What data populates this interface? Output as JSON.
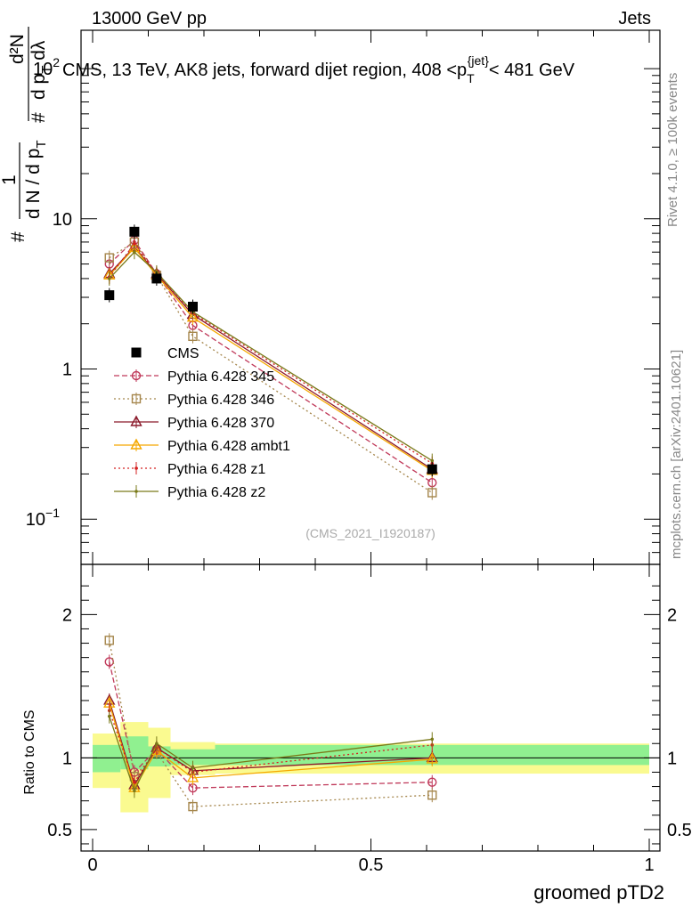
{
  "header": {
    "energy_label": "13000 GeV pp",
    "category_label": "Jets",
    "title": "CMS, 13 TeV, AK8 jets, forward dijet region, 408 <p",
    "title_sup": "{jet}",
    "title_sub": "T",
    "title_end": "< 481 GeV",
    "analysis_id": "(CMS_2021_I1920187)",
    "side_label_top": "Rivet 4.1.0, ≥ 100k events",
    "side_label_bottom": "mcplots.cern.ch [arXiv:2401.10621]"
  },
  "colors": {
    "CMS": "#000000",
    "p345": "#c0395a",
    "p346": "#a5864c",
    "p370": "#8b1a2b",
    "ambt1": "#f5a800",
    "z1": "#d42020",
    "z2": "#7a7a1a",
    "band_inner": "#90f090",
    "band_outer": "#fafa90"
  },
  "chart_data": [
    {
      "type": "line",
      "panel": "main",
      "yscale": "log",
      "ylabel": {
        "numerator": "1",
        "denominator": "d N / d p",
        "denominator_sub": "T",
        "hash1": "#",
        "hash2": "#",
        "d2N": "d²N",
        "dpTdl": "d p",
        "dpTdl_sub": "T",
        "dpTdl_end": " dλ"
      },
      "xlim": [
        -0.02,
        1.0
      ],
      "ylim": [
        0.05,
        180
      ],
      "y_tick_labels": [
        {
          "value": 0.1,
          "base": "10",
          "exp": "−1"
        },
        {
          "value": 1,
          "base": "1",
          "exp": ""
        },
        {
          "value": 10,
          "base": "10",
          "exp": ""
        },
        {
          "value": 100,
          "base": "10",
          "exp": "2"
        }
      ],
      "x": [
        0.03,
        0.075,
        0.115,
        0.18,
        0.61
      ],
      "series": [
        {
          "name": "CMS",
          "key": "CMS",
          "marker": "filled-square",
          "values": [
            3.1,
            8.2,
            4.0,
            2.6,
            0.215
          ]
        },
        {
          "name": "Pythia 6.428 345",
          "key": "p345",
          "marker": "circle",
          "dash": "dash",
          "values": [
            5.0,
            7.2,
            4.3,
            1.95,
            0.175
          ]
        },
        {
          "name": "Pythia 6.428 346",
          "key": "p346",
          "marker": "square",
          "dash": "dot",
          "values": [
            5.5,
            7.0,
            4.2,
            1.65,
            0.15
          ]
        },
        {
          "name": "Pythia 6.428 370",
          "key": "p370",
          "marker": "triangle",
          "dash": "solid",
          "values": [
            4.3,
            6.5,
            4.3,
            2.3,
            0.215
          ]
        },
        {
          "name": "Pythia 6.428 ambt1",
          "key": "ambt1",
          "marker": "triangle",
          "dash": "solid",
          "values": [
            4.2,
            6.4,
            4.2,
            2.2,
            0.21
          ]
        },
        {
          "name": "Pythia 6.428 z1",
          "key": "z1",
          "marker": "dot",
          "dash": "dot",
          "values": [
            4.1,
            6.8,
            4.3,
            2.35,
            0.235
          ]
        },
        {
          "name": "Pythia 6.428 z2",
          "key": "z2",
          "marker": "dot",
          "dash": "solid",
          "values": [
            4.0,
            6.0,
            4.4,
            2.4,
            0.245
          ]
        }
      ]
    },
    {
      "type": "line",
      "panel": "ratio",
      "yscale": "linear",
      "ylabel": "Ratio to CMS",
      "xlabel": "groomed pTD2",
      "xlim": [
        -0.02,
        1.0
      ],
      "ylim": [
        0.35,
        2.35
      ],
      "y_tick_labels": [
        "0.5",
        "1",
        "2"
      ],
      "y_tick_values": [
        0.5,
        1,
        2
      ],
      "x_tick_labels": [
        "0",
        "0.5",
        "1"
      ],
      "x_tick_values": [
        0,
        0.5,
        1
      ],
      "bin_edges": [
        0,
        0.05,
        0.1,
        0.14,
        0.22,
        1.0
      ],
      "bands": {
        "inner": [
          [
            0.9,
            1.09
          ],
          [
            0.92,
            1.15
          ],
          [
            0.94,
            1.08
          ],
          [
            0.95,
            1.06
          ],
          [
            0.95,
            1.09
          ]
        ],
        "outer": [
          [
            0.79,
            1.17
          ],
          [
            0.62,
            1.25
          ],
          [
            0.72,
            1.21
          ],
          [
            0.88,
            1.11
          ],
          [
            0.89,
            1.1
          ]
        ]
      },
      "x": [
        0.03,
        0.075,
        0.115,
        0.18,
        0.61
      ],
      "series": [
        {
          "name": "Pythia 6.428 345",
          "key": "p345",
          "marker": "circle",
          "dash": "dash",
          "values": [
            1.67,
            0.9,
            1.06,
            0.79,
            0.83
          ]
        },
        {
          "name": "Pythia 6.428 346",
          "key": "p346",
          "marker": "square",
          "dash": "dot",
          "values": [
            1.82,
            0.87,
            1.04,
            0.66,
            0.74
          ]
        },
        {
          "name": "Pythia 6.428 370",
          "key": "p370",
          "marker": "triangle",
          "dash": "solid",
          "values": [
            1.4,
            0.81,
            1.07,
            0.91,
            1.0
          ]
        },
        {
          "name": "Pythia 6.428 ambt1",
          "key": "ambt1",
          "marker": "triangle",
          "dash": "solid",
          "values": [
            1.38,
            0.79,
            1.05,
            0.86,
            0.99
          ]
        },
        {
          "name": "Pythia 6.428 z1",
          "key": "z1",
          "marker": "dot",
          "dash": "dot",
          "values": [
            1.33,
            0.83,
            1.07,
            0.9,
            1.09
          ]
        },
        {
          "name": "Pythia 6.428 z2",
          "key": "z2",
          "marker": "dot",
          "dash": "solid",
          "values": [
            1.29,
            0.77,
            1.1,
            0.93,
            1.13
          ]
        }
      ]
    }
  ]
}
